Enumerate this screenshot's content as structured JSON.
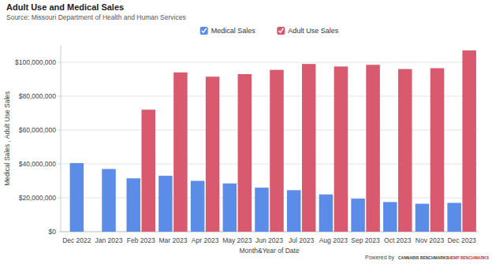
{
  "chart_data": {
    "type": "bar",
    "title": "Adult Use and Medical Sales",
    "subtitle": "Source: Missouri Department of Health and Human Services",
    "x_label": "Month&Year of Date",
    "y_label": "Medical Sales , Adult Use Sales",
    "annotations": [
      "Powered by",
      "CANNABIS BENCHMARKS",
      "HEMP BENCHMARKS"
    ],
    "categories": [
      "Dec 2022",
      "Jan 2023",
      "Feb 2023",
      "Mar 2023",
      "Apr 2023",
      "May 2023",
      "Jun 2023",
      "Jul 2023",
      "Aug 2023",
      "Sep 2023",
      "Oct 2023",
      "Nov 2023",
      "Dec 2023"
    ],
    "series": [
      {
        "name": "Medical Sales",
        "color": "#5b8de8",
        "values": [
          40500000,
          37000000,
          31500000,
          33000000,
          30000000,
          28500000,
          26000000,
          24500000,
          22000000,
          19500000,
          17500000,
          16500000,
          17000000
        ]
      },
      {
        "name": "Adult Use Sales",
        "color": "#d9596e",
        "values": [
          null,
          null,
          72000000,
          94000000,
          91500000,
          93000000,
          95500000,
          99000000,
          97500000,
          98500000,
          96000000,
          96500000,
          107000000
        ]
      }
    ],
    "ylim": [
      0,
      110000000
    ],
    "yticks": [
      {
        "value": 0,
        "label": "$0"
      },
      {
        "value": 20000000,
        "label": "$20,000,000"
      },
      {
        "value": 40000000,
        "label": "$40,000,000"
      },
      {
        "value": 60000000,
        "label": "$60,000,000"
      },
      {
        "value": 80000000,
        "label": "$80,000,000"
      },
      {
        "value": 100000000,
        "label": "$100,000,000"
      }
    ],
    "grid": true,
    "legend": "top"
  }
}
